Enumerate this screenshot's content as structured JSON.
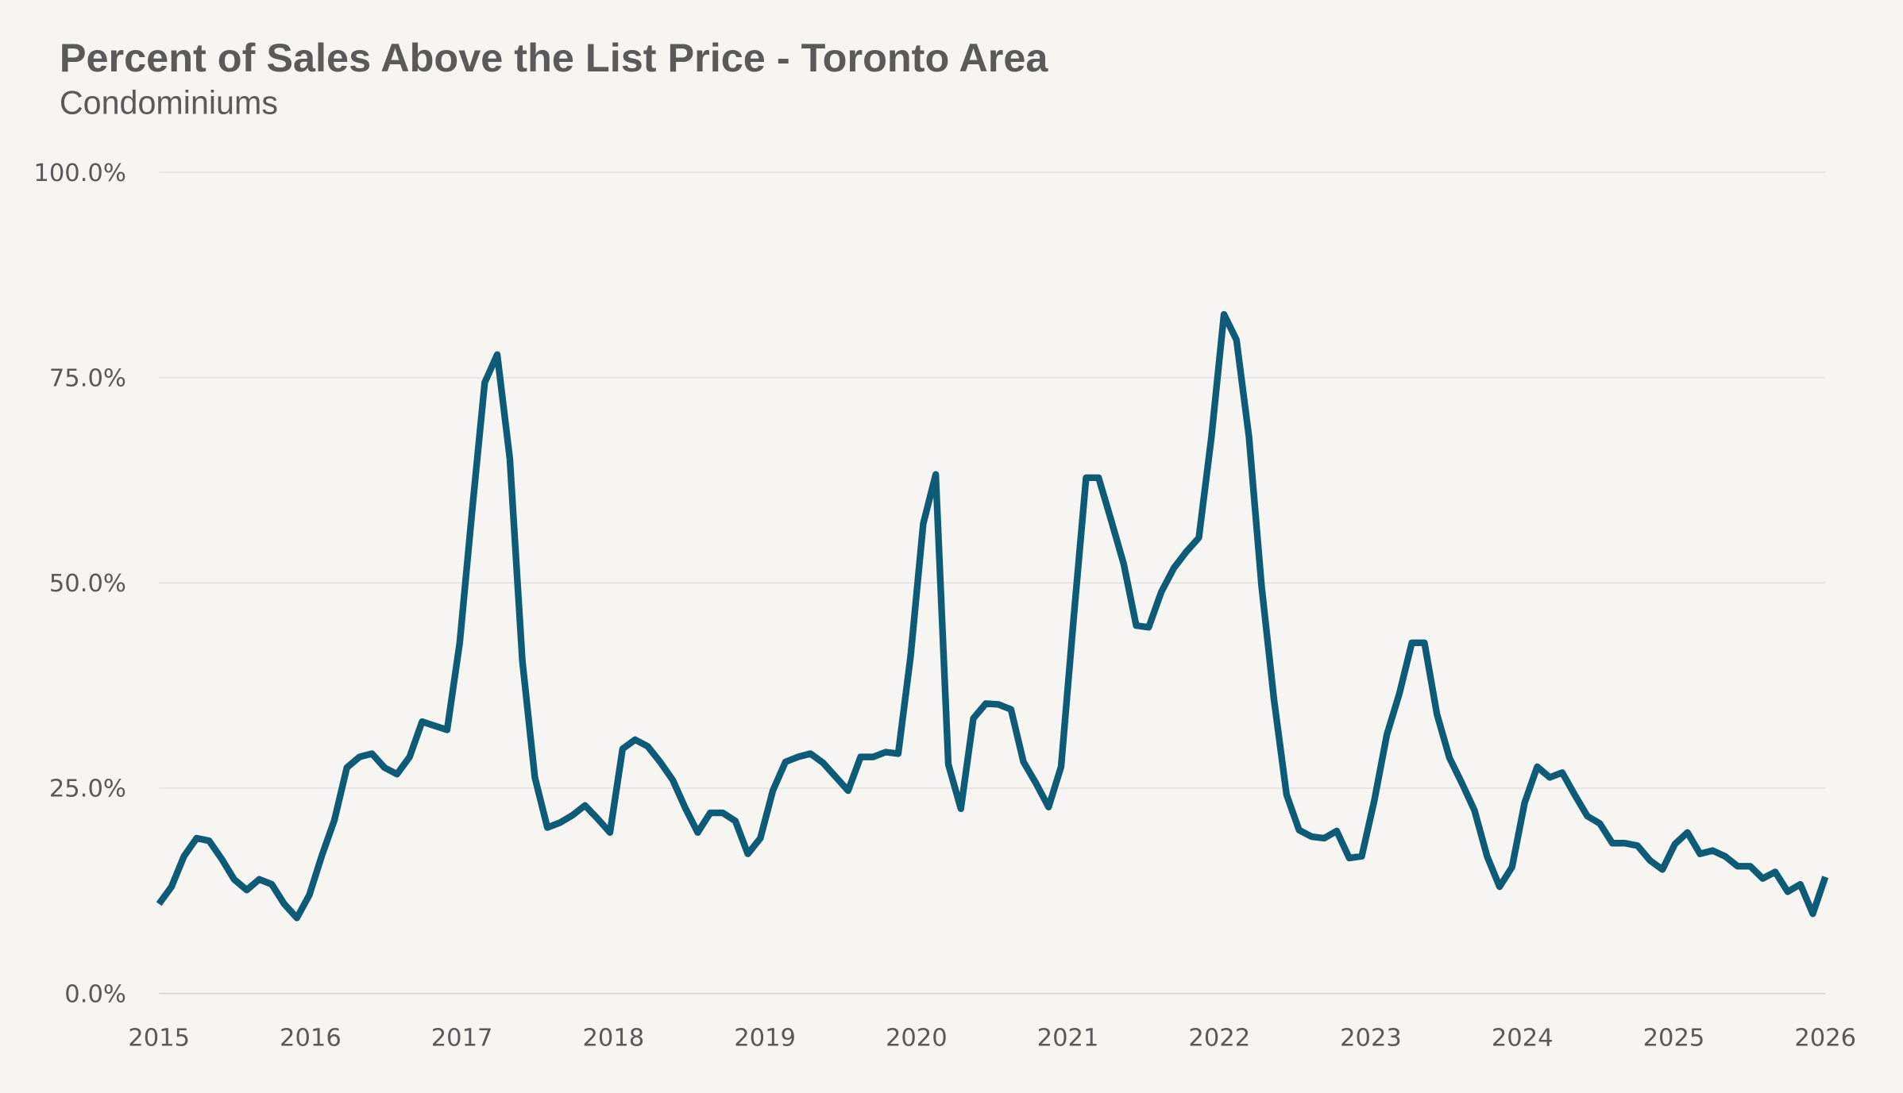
{
  "chart_data": {
    "type": "line",
    "title": "Percent of Sales Above the List Price - Toronto Area",
    "subtitle": "Condominiums",
    "xlabel": "",
    "ylabel": "",
    "ylim": [
      0,
      100
    ],
    "y_ticks": [
      "0.0%",
      "25.0%",
      "50.0%",
      "75.0%",
      "100.0%"
    ],
    "y_tick_values": [
      0,
      25,
      50,
      75,
      100
    ],
    "x_ticks": [
      "2015",
      "2016",
      "2017",
      "2018",
      "2019",
      "2020",
      "2021",
      "2022",
      "2023",
      "2024",
      "2025",
      "2026"
    ],
    "grid": "horizontal",
    "legend": "none",
    "line_color": "#0e5b78",
    "series": [
      {
        "start": "2015-01",
        "frequency": "monthly",
        "values": [
          10.9,
          13.0,
          16.7,
          18.9,
          18.6,
          16.4,
          13.9,
          12.6,
          13.9,
          13.3,
          10.9,
          9.2,
          12.0,
          16.8,
          21.1,
          27.5,
          28.8,
          29.2,
          27.5,
          26.7,
          28.8,
          33.1,
          32.6,
          32.1,
          42.7,
          58.9,
          74.4,
          77.8,
          65.1,
          40.5,
          26.3,
          20.2,
          20.8,
          21.7,
          22.9,
          21.3,
          19.6,
          29.8,
          30.9,
          30.1,
          28.2,
          26.0,
          22.6,
          19.6,
          22.0,
          22.0,
          21.0,
          17.0,
          18.9,
          24.7,
          28.2,
          28.8,
          29.2,
          28.1,
          26.4,
          24.7,
          28.8,
          28.8,
          29.4,
          29.2,
          41.2,
          57.2,
          63.2,
          27.9,
          22.5,
          33.5,
          35.3,
          35.2,
          34.6,
          28.2,
          25.6,
          22.7,
          27.6,
          45.6,
          62.8,
          62.8,
          57.6,
          52.3,
          44.8,
          44.6,
          48.9,
          51.8,
          53.8,
          55.5,
          67.8,
          82.7,
          79.6,
          67.8,
          49.6,
          35.7,
          24.2,
          19.9,
          19.1,
          18.9,
          19.8,
          16.5,
          16.7,
          23.5,
          31.5,
          36.5,
          42.7,
          42.7,
          34.0,
          28.7,
          25.6,
          22.3,
          16.7,
          13.0,
          15.4,
          23.2,
          27.6,
          26.3,
          26.9,
          24.2,
          21.6,
          20.7,
          18.3,
          18.3,
          18.0,
          16.2,
          15.1,
          18.2,
          19.6,
          17.0,
          17.4,
          16.7,
          15.5,
          15.5,
          14.0,
          14.8,
          12.4,
          13.3,
          9.7,
          14.2
        ]
      }
    ]
  }
}
